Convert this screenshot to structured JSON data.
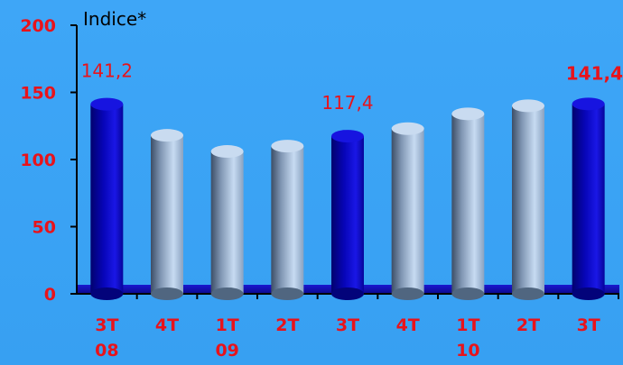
{
  "chart_data": {
    "type": "bar",
    "ylabel": "Indice*",
    "ylim": [
      0,
      200
    ],
    "yticks": [
      "0",
      "50",
      "100",
      "150",
      "200"
    ],
    "categories": [
      [
        "3T",
        "08"
      ],
      [
        "4T",
        ""
      ],
      [
        "1T",
        "09"
      ],
      [
        "2T",
        ""
      ],
      [
        "3T",
        ""
      ],
      [
        "4T",
        ""
      ],
      [
        "1T",
        "10"
      ],
      [
        "2T",
        ""
      ],
      [
        "3T",
        ""
      ]
    ],
    "values": [
      141.2,
      118,
      106,
      110,
      117.4,
      123,
      134,
      140,
      141.4
    ],
    "highlighted": [
      true,
      false,
      false,
      false,
      true,
      false,
      false,
      false,
      true
    ],
    "data_labels": [
      "141,2",
      "",
      "",
      "",
      "117,4",
      "",
      "",
      "",
      "141,4"
    ],
    "data_label_bold": [
      false,
      false,
      false,
      false,
      false,
      false,
      false,
      false,
      true
    ],
    "colors": {
      "highlight": "#0a06c8",
      "normal": "#9bb7da",
      "floor": "#1211b8",
      "axis": "#000000",
      "label": "#e8131b"
    }
  }
}
